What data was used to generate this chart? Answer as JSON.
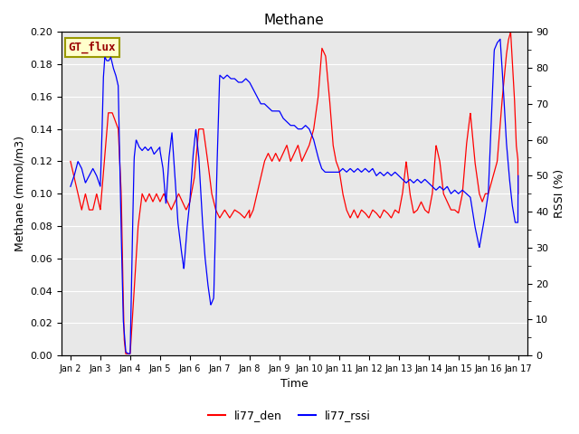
{
  "title": "Methane",
  "xlabel": "Time",
  "ylabel_left": "Methane (mmol/m3)",
  "ylabel_right": "RSSI (%)",
  "ylim_left": [
    0.0,
    0.2
  ],
  "ylim_right": [
    0,
    90
  ],
  "yticks_left": [
    0.0,
    0.02,
    0.04,
    0.06,
    0.08,
    0.1,
    0.12,
    0.14,
    0.16,
    0.18,
    0.2
  ],
  "yticks_right": [
    0,
    10,
    20,
    30,
    40,
    50,
    60,
    70,
    80,
    90
  ],
  "xtick_labels": [
    "Jan 2",
    "Jan 3",
    "Jan 4",
    "Jan 5",
    "Jan 6",
    "Jan 7",
    "Jan 8",
    "Jan 9",
    "Jan 10",
    "Jan 11",
    "Jan 12",
    "Jan 13",
    "Jan 14",
    "Jan 15",
    "Jan 16",
    "Jan 17"
  ],
  "legend_labels": [
    "li77_den",
    "li77_rssi"
  ],
  "gt_flux_label": "GT_flux",
  "bg_color": "#e8e8e8",
  "line_color_red": "#ff0000",
  "line_color_blue": "#0000ff"
}
